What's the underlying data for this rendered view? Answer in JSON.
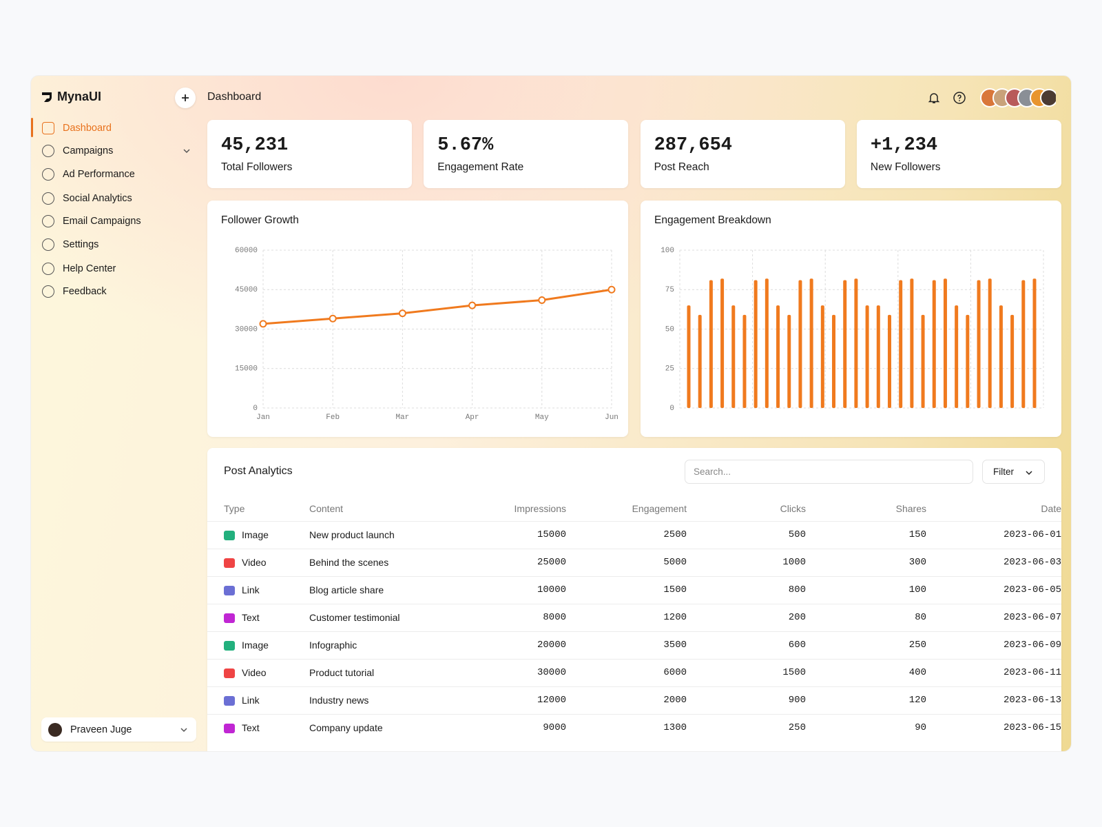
{
  "sidebar": {
    "brand": "MynaUI",
    "nav": [
      "Dashboard",
      "Campaigns",
      "Ad Performance",
      "Social Analytics",
      "Email Campaigns",
      "Settings",
      "Help Center",
      "Feedback"
    ],
    "user": "Praveen Juge"
  },
  "header": {
    "title": "Dashboard"
  },
  "stats": [
    {
      "value": "45,231",
      "label": "Total Followers"
    },
    {
      "value": "5.67%",
      "label": "Engagement Rate"
    },
    {
      "value": "287,654",
      "label": "Post Reach"
    },
    {
      "value": "+1,234",
      "label": "New Followers"
    }
  ],
  "chart_data": [
    {
      "type": "line",
      "title": "Follower Growth",
      "categories": [
        "Jan",
        "Feb",
        "Mar",
        "Apr",
        "May",
        "Jun"
      ],
      "values": [
        32000,
        34000,
        36000,
        39000,
        41000,
        45000
      ],
      "color": "#f07a1e",
      "ylim": [
        0,
        60000
      ],
      "yticks": [
        0,
        15000,
        30000,
        45000,
        60000
      ],
      "grid": true
    },
    {
      "type": "bar",
      "title": "Engagement Breakdown",
      "values": [
        65,
        59,
        81,
        82,
        65,
        59,
        81,
        82,
        65,
        59,
        81,
        82,
        65,
        59,
        81,
        82,
        65,
        65,
        59,
        81,
        82,
        59,
        81,
        82,
        65,
        59,
        81,
        82,
        65,
        59,
        81,
        82
      ],
      "color": "#f07a1e",
      "ylim": [
        0,
        100
      ],
      "yticks": [
        0,
        25,
        50,
        75,
        100
      ],
      "grid": true
    }
  ],
  "table": {
    "title": "Post Analytics",
    "search": "Search...",
    "filter": "Filter",
    "columns": [
      "Type",
      "Content",
      "Impressions",
      "Engagement",
      "Clicks",
      "Shares",
      "Date"
    ],
    "rows": [
      {
        "color": "#22b07d",
        "cells": [
          "Image",
          "New product launch",
          15000,
          2500,
          500,
          150,
          "2023-06-01"
        ]
      },
      {
        "color": "#ef4444",
        "cells": [
          "Video",
          "Behind the scenes",
          25000,
          5000,
          1000,
          300,
          "2023-06-03"
        ]
      },
      {
        "color": "#6b6fd4",
        "cells": [
          "Link",
          "Blog article share",
          10000,
          1500,
          800,
          100,
          "2023-06-05"
        ]
      },
      {
        "color": "#c026d3",
        "cells": [
          "Text",
          "Customer testimonial",
          8000,
          1200,
          200,
          80,
          "2023-06-07"
        ]
      },
      {
        "color": "#22b07d",
        "cells": [
          "Image",
          "Infographic",
          20000,
          3500,
          600,
          250,
          "2023-06-09"
        ]
      },
      {
        "color": "#ef4444",
        "cells": [
          "Video",
          "Product tutorial",
          30000,
          6000,
          1500,
          400,
          "2023-06-11"
        ]
      },
      {
        "color": "#6b6fd4",
        "cells": [
          "Link",
          "Industry news",
          12000,
          2000,
          900,
          120,
          "2023-06-13"
        ]
      },
      {
        "color": "#c026d3",
        "cells": [
          "Text",
          "Company update",
          9000,
          1300,
          250,
          90,
          "2023-06-15"
        ]
      }
    ]
  }
}
